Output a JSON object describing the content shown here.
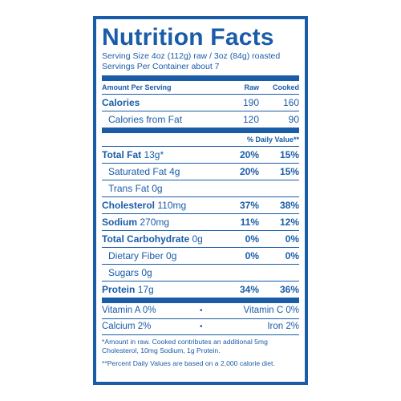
{
  "panel": {
    "title": "Nutrition Facts",
    "serving_size": "Serving Size 4oz (112g) raw / 3oz (84g) roasted",
    "servings_per_container": "Servings Per Container about 7",
    "amount_header": "Amount Per Serving",
    "col_raw": "Raw",
    "col_cooked": "Cooked",
    "calories": {
      "label": "Calories",
      "raw": "190",
      "cooked": "160"
    },
    "calories_fat": {
      "label": "Calories from Fat",
      "raw": "120",
      "cooked": "90"
    },
    "dv_header": "% Daily Value**",
    "nutrients": [
      {
        "name": "Total Fat",
        "amount": "13g*",
        "raw": "20%",
        "cooked": "15%"
      },
      {
        "name": "Saturated Fat",
        "amount": "4g",
        "raw": "20%",
        "cooked": "15%"
      },
      {
        "name": "Trans Fat",
        "amount": "0g",
        "raw": "",
        "cooked": ""
      },
      {
        "name": "Cholesterol",
        "amount": "110mg",
        "raw": "37%",
        "cooked": "38%"
      },
      {
        "name": "Sodium",
        "amount": "270mg",
        "raw": "11%",
        "cooked": "12%"
      },
      {
        "name": "Total Carbohydrate",
        "amount": "0g",
        "raw": "0%",
        "cooked": "0%"
      },
      {
        "name": "Dietary Fiber",
        "amount": "0g",
        "raw": "0%",
        "cooked": "0%"
      },
      {
        "name": "Sugars",
        "amount": "0g",
        "raw": "",
        "cooked": ""
      },
      {
        "name": "Protein",
        "amount": "17g",
        "raw": "34%",
        "cooked": "36%"
      }
    ],
    "vitamins": [
      {
        "left": "Vitamin A 0%",
        "dot": "•",
        "right": "Vitamin C 0%"
      },
      {
        "left": "Calcium 2%",
        "dot": "•",
        "right": "Iron 2%"
      }
    ],
    "footnote1_line1": "*Amount in raw. Cooked contributes an additional 5mg",
    "footnote1_line2": "Cholesterol, 10mg Sodium, 1g Protein.",
    "footnote2": "**Percent Daily Values are based on a 2,000 calorie diet."
  },
  "colors": {
    "ink": "#1a5ca8",
    "background": "#ffffff"
  }
}
